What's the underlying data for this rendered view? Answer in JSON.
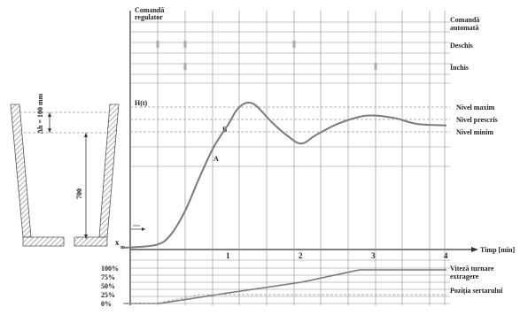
{
  "labels": {
    "cmd_regulator_line1": "Comandă",
    "cmd_regulator_line2": "regulator",
    "cmd_auto_line1": "Comandă",
    "cmd_auto_line2": "automată",
    "open": "Deschis",
    "closed": "Închis",
    "level_max": "Nivel maxim",
    "level_set": "Nivel prescris",
    "level_min": "Nivel minim",
    "curve_name": "H(t)",
    "point_a": "A",
    "point_b": "B",
    "time_axis": "Timp [min]",
    "pour_speed_line1": "Viteză turnare",
    "pour_speed_line2": "extragere",
    "slide_position": "Poziția sertarului",
    "x_mark": "x",
    "x_mark_sub": "m"
  },
  "mold": {
    "delta_h_label": "Δh = 100 mm",
    "height_label": "700"
  },
  "chart_data": [
    {
      "type": "line",
      "title": "",
      "xlabel": "Timp [min]",
      "ylabel": "H(t)",
      "x_ticks": [
        "1",
        "2",
        "3",
        "4"
      ],
      "xlim": [
        0,
        4
      ],
      "reference_lines": [
        "Nivel maxim",
        "Nivel prescris",
        "Nivel minim"
      ],
      "series": [
        {
          "name": "H(t)",
          "x": [
            -0.45,
            0.0,
            0.2,
            0.4,
            0.6,
            0.8,
            1.0,
            1.1,
            1.2,
            1.3,
            1.4,
            1.6,
            1.8,
            2.0,
            2.2,
            2.5,
            2.8,
            3.0,
            3.3,
            3.6,
            4.0
          ],
          "y": [
            0.0,
            0.02,
            0.09,
            0.26,
            0.5,
            0.72,
            0.88,
            0.97,
            1.02,
            1.03,
            1.0,
            0.89,
            0.8,
            0.74,
            0.8,
            0.88,
            0.93,
            0.94,
            0.92,
            0.88,
            0.87
          ]
        }
      ]
    },
    {
      "type": "line",
      "title": "",
      "xlim": [
        0,
        4
      ],
      "ylim": [
        0,
        100
      ],
      "y_ticks": [
        "0%",
        "25%",
        "50%",
        "75%",
        "100%"
      ],
      "series": [
        {
          "name": "Viteză turnare extragere",
          "x": [
            -0.45,
            0.0,
            0.05,
            1.0,
            2.0,
            2.8,
            3.0,
            4.0
          ],
          "y": [
            0,
            0,
            0,
            30,
            60,
            95,
            95,
            95
          ]
        },
        {
          "name": "Poziția sertarului",
          "x": [
            -0.45,
            -0.05,
            0.0,
            0.6,
            4.0
          ],
          "y": [
            0,
            0,
            0,
            25,
            25
          ]
        }
      ]
    }
  ]
}
